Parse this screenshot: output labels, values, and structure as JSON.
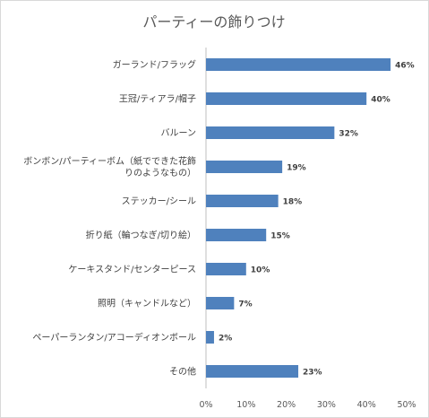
{
  "chart_data": {
    "type": "bar",
    "orientation": "horizontal",
    "title": "パーティーの飾りつけ",
    "xlabel": "",
    "ylabel": "",
    "categories": [
      [
        "ガーランド/フラッグ"
      ],
      [
        "王冠/ティアラ/帽子"
      ],
      [
        "バルーン"
      ],
      [
        "ボンボン/パーティーボム（紙でできた花飾",
        "りのようなもの）"
      ],
      [
        "ステッカー/シール"
      ],
      [
        "折り紙（輪つなぎ/切り絵）"
      ],
      [
        "ケーキスタンド/センターピース"
      ],
      [
        "照明（キャンドルなど）"
      ],
      [
        "ペーパーランタン/アコーディオンボール"
      ],
      [
        "その他"
      ]
    ],
    "values": [
      46,
      40,
      32,
      19,
      18,
      15,
      10,
      7,
      2,
      23
    ],
    "value_labels": [
      "46%",
      "40%",
      "32%",
      "19%",
      "18%",
      "15%",
      "10%",
      "7%",
      "2%",
      "23%"
    ],
    "xlim": [
      0,
      50
    ],
    "xticks": [
      "0%",
      "10%",
      "20%",
      "30%",
      "40%",
      "50%"
    ],
    "grid": false,
    "legend": "none",
    "bar_color": "#4f81bd"
  }
}
